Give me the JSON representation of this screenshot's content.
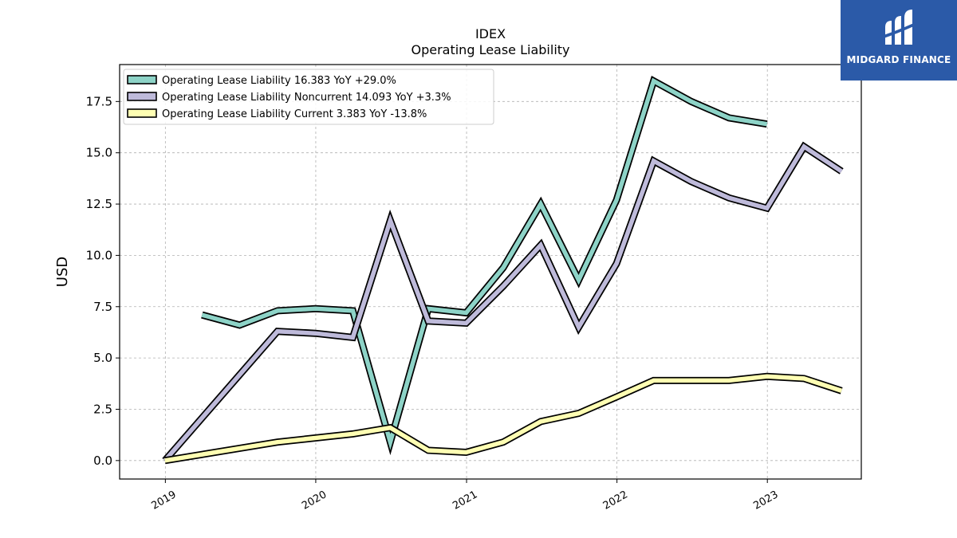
{
  "chart_data": {
    "type": "line",
    "title": "IDEX",
    "subtitle": "Operating Lease Liability",
    "ylabel": "USD",
    "xlabel": "",
    "ylim": [
      -0.9,
      19.3
    ],
    "y_ticks": [
      0.0,
      2.5,
      5.0,
      7.5,
      10.0,
      12.5,
      15.0,
      17.5
    ],
    "y_tick_labels": [
      "0.0",
      "2.5",
      "5.0",
      "7.5",
      "10.0",
      "12.5",
      "15.0",
      "17.5"
    ],
    "x_ticks": [
      "2019",
      "2020",
      "2021",
      "2022",
      "2023"
    ],
    "grid": true,
    "legend_position": "top-left",
    "series": [
      {
        "name": "Operating Lease Liability",
        "legend": "Operating Lease Liability  16.383 YoY +29.0%",
        "color": "#8dd3c7",
        "x": [
          "2019-03-31",
          "2019-06-30",
          "2019-09-30",
          "2019-12-31",
          "2020-03-31",
          "2020-06-30",
          "2020-09-30",
          "2020-12-31",
          "2021-03-31",
          "2021-06-30",
          "2021-09-30",
          "2021-12-31",
          "2022-03-31",
          "2022-06-30",
          "2022-09-30",
          "2022-12-31"
        ],
        "values": [
          7.1,
          6.6,
          7.3,
          7.4,
          7.3,
          0.9,
          7.4,
          7.2,
          9.4,
          12.5,
          8.8,
          12.7,
          18.5,
          17.5,
          16.7,
          16.4
        ]
      },
      {
        "name": "Operating Lease Liability Noncurrent",
        "legend": "Operating Lease Liability Noncurrent  14.093 YoY +3.3%",
        "color": "#bebada",
        "x": [
          "2018-12-31",
          "2019-09-30",
          "2019-12-31",
          "2020-03-31",
          "2020-06-30",
          "2020-09-30",
          "2020-12-31",
          "2021-03-31",
          "2021-06-30",
          "2021-09-30",
          "2021-12-31",
          "2022-03-31",
          "2022-06-30",
          "2022-09-30",
          "2022-12-31",
          "2023-03-31",
          "2023-06-30"
        ],
        "values": [
          0.0,
          6.3,
          6.2,
          6.0,
          11.7,
          6.8,
          6.7,
          8.5,
          10.5,
          6.5,
          9.6,
          14.6,
          13.6,
          12.8,
          12.3,
          15.3,
          14.1
        ]
      },
      {
        "name": "Operating Lease Liability Current",
        "legend": "Operating Lease Liability Current  3.383 YoY -13.8%",
        "color": "#ffffb3",
        "x": [
          "2018-12-31",
          "2019-09-30",
          "2019-12-31",
          "2020-03-31",
          "2020-06-30",
          "2020-09-30",
          "2020-12-31",
          "2021-03-31",
          "2021-06-30",
          "2021-09-30",
          "2021-12-31",
          "2022-03-31",
          "2022-06-30",
          "2022-09-30",
          "2022-12-31",
          "2023-03-31",
          "2023-06-30"
        ],
        "values": [
          0.0,
          0.9,
          1.1,
          1.3,
          1.6,
          0.5,
          0.4,
          0.9,
          1.9,
          2.3,
          3.1,
          3.9,
          3.9,
          3.9,
          4.1,
          4.0,
          3.4
        ]
      }
    ]
  },
  "logo": {
    "text": "MIDGARD FINANCE",
    "color": "#2b5aa8"
  }
}
